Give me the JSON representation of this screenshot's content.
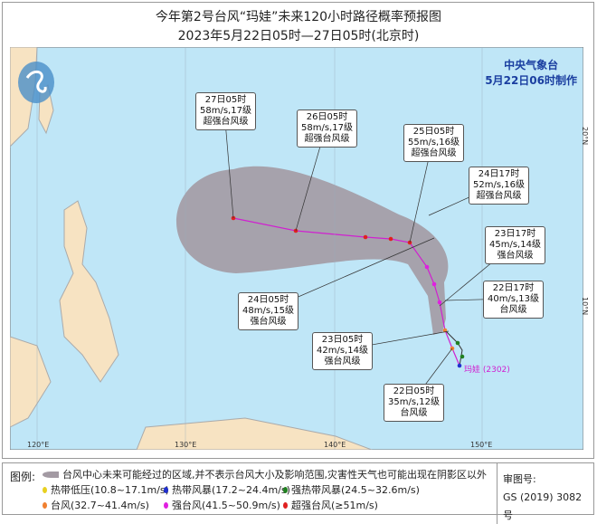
{
  "title": "今年第2号台风“玛娃”未来120小时路径概率预报图",
  "subtitle": "2023年5月22日05时—27日05时(北京时)",
  "agency": {
    "name": "中央气象台",
    "made": "5月22日06时制作"
  },
  "storm_label": "玛娃 (2302)",
  "axes": {
    "lon": [
      "120°E",
      "130°E",
      "140°E",
      "150°E"
    ],
    "lat": [
      "20°N",
      "10°N"
    ]
  },
  "forecast_points": [
    {
      "time": "22日05时",
      "wind": "35m/s,12级",
      "level": "台风级",
      "color": "#f08030"
    },
    {
      "time": "22日17时",
      "wind": "40m/s,13级",
      "level": "台风级",
      "color": "#f08030"
    },
    {
      "time": "23日05时",
      "wind": "42m/s,14级",
      "level": "强台风级",
      "color": "#e020e0"
    },
    {
      "time": "23日17时",
      "wind": "45m/s,14级",
      "level": "强台风级",
      "color": "#e020e0"
    },
    {
      "time": "24日05时",
      "wind": "48m/s,15级",
      "level": "强台风级",
      "color": "#e020e0"
    },
    {
      "time": "24日17时",
      "wind": "52m/s,16级",
      "level": "超强台风级",
      "color": "#e02020"
    },
    {
      "time": "25日05时",
      "wind": "55m/s,16级",
      "level": "超强台风级",
      "color": "#e02020"
    },
    {
      "time": "26日05时",
      "wind": "58m/s,17级",
      "level": "超强台风级",
      "color": "#e02020"
    },
    {
      "time": "27日05时",
      "wind": "58m/s,17级",
      "level": "超强台风级",
      "color": "#e02020"
    }
  ],
  "legend": {
    "label": "图例:",
    "cone": "台风中心未来可能经过的区域,并不表示台风大小及影响范围,灾害性天气也可能出现在阴影区以外",
    "items": [
      {
        "text": "热带低压(10.8~17.1m/s)",
        "color": "#e8d020"
      },
      {
        "text": "热带风暴(17.2~24.4m/s)",
        "color": "#2030d0"
      },
      {
        "text": "强热带风暴(24.5~32.6m/s)",
        "color": "#208020"
      },
      {
        "text": "台风(32.7~41.4m/s)",
        "color": "#f08030"
      },
      {
        "text": "强台风(41.5~50.9m/s)",
        "color": "#e020e0"
      },
      {
        "text": "超强台风(≥51m/s)",
        "color": "#e02020"
      }
    ],
    "review_label": "审图号:",
    "review_no": "GS (2019) 3082号"
  }
}
